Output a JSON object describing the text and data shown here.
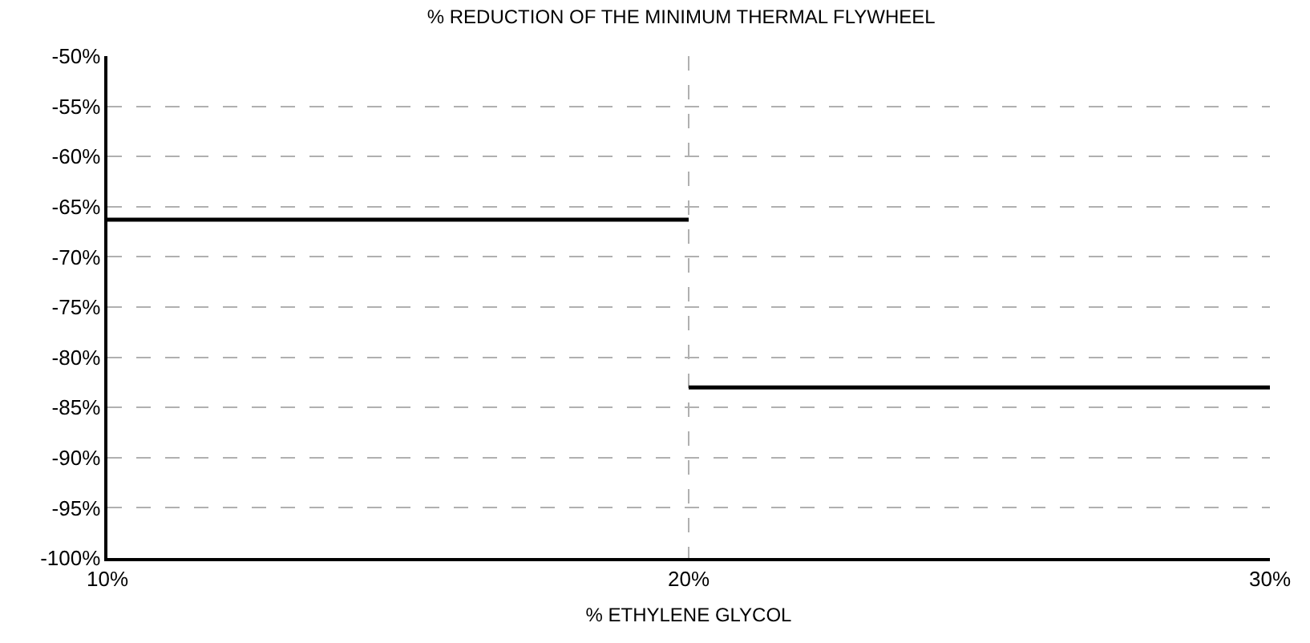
{
  "chart_data": {
    "type": "line",
    "title": "% REDUCTION OF THE MINIMUM THERMAL FLYWHEEL",
    "xlabel": "% ETHYLENE GLYCOL",
    "series": [
      {
        "color": "#000000",
        "x": [
          10,
          20
        ],
        "values": [
          -66.3,
          -66.3
        ]
      },
      {
        "color": "#000000",
        "x": [
          20,
          30
        ],
        "values": [
          -83,
          -83
        ]
      }
    ],
    "xlim": [
      10,
      30
    ],
    "xticks": [
      {
        "value": 10,
        "label": "10%"
      },
      {
        "value": 20,
        "label": "20%"
      },
      {
        "value": 30,
        "label": "30%"
      }
    ],
    "ylim": [
      -100,
      -50
    ],
    "yticks": [
      {
        "value": -100,
        "label": "-100%"
      },
      {
        "value": -95,
        "label": "-95%"
      },
      {
        "value": -90,
        "label": "-90%"
      },
      {
        "value": -85,
        "label": "-85%"
      },
      {
        "value": -80,
        "label": "-80%"
      },
      {
        "value": -75,
        "label": "-75%"
      },
      {
        "value": -70,
        "label": "-70%"
      },
      {
        "value": -65,
        "label": "-65%"
      },
      {
        "value": -60,
        "label": "-60%"
      },
      {
        "value": -55,
        "label": "-55%"
      },
      {
        "value": -50,
        "label": "-50%"
      }
    ],
    "grid": true,
    "marker": "none",
    "line_style": "solid"
  }
}
